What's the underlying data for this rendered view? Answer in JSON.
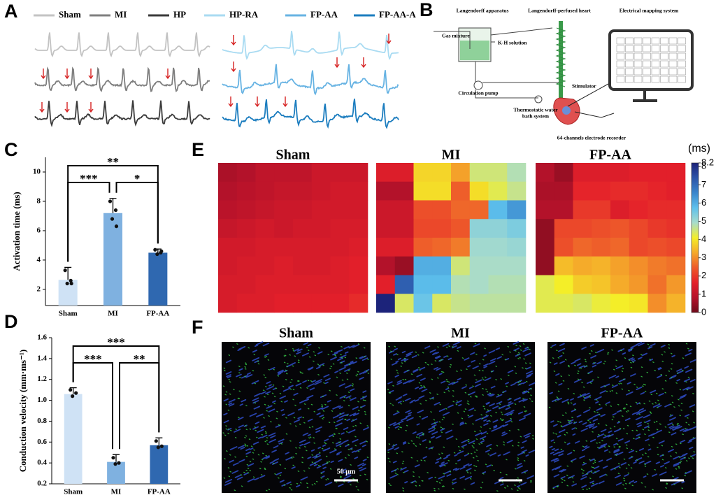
{
  "panel_a": {
    "letter": "A",
    "legend": [
      {
        "name": "Sham",
        "color": "#c3c3c3"
      },
      {
        "name": "MI",
        "color": "#7f7f7f"
      },
      {
        "name": "HP",
        "color": "#3a3a3a"
      },
      {
        "name": "HP-RA",
        "color": "#a9dbf2"
      },
      {
        "name": "FP-AA",
        "color": "#67b3e3"
      },
      {
        "name": "FP-AA-A",
        "color": "#1c7dbf"
      }
    ]
  },
  "panel_b": {
    "letter": "B",
    "labels": {
      "apparatus": "Langendorff apparatus",
      "heart": "Langendorff-perfused heart",
      "mapping": "Electrical mapping system",
      "gas": "Gas mixture",
      "solution": "K-H solution",
      "pump": "Circulation pump",
      "bath": [
        "Thermostatic water",
        "bath system"
      ],
      "stimulator": "Stimulator",
      "recorder": "64-channels electrode recorder"
    }
  },
  "chart_data": [
    {
      "type": "bar",
      "panel_letter": "C",
      "ylabel": "Activation time (ms)",
      "categories": [
        "Sham",
        "MI",
        "FP-AA"
      ],
      "values": [
        2.65,
        7.2,
        4.5
      ],
      "errors": [
        0.85,
        1.0,
        0.25
      ],
      "points": [
        [
          3.3,
          2.6,
          2.4,
          2.4
        ],
        [
          8.0,
          7.4,
          6.8,
          6.3
        ],
        [
          4.7,
          4.5,
          4.4,
          4.6
        ]
      ],
      "colors": [
        "#cfe2f5",
        "#7fb1e0",
        "#2f68b0"
      ],
      "ylim": [
        0.9,
        11
      ],
      "yticks": [
        2,
        4,
        6,
        8,
        10
      ],
      "annotations": [
        {
          "text": "**",
          "between": [
            "Sham",
            "FP-AA"
          ]
        },
        {
          "text": "***",
          "between": [
            "Sham",
            "MI"
          ]
        },
        {
          "text": "*",
          "between": [
            "MI",
            "FP-AA"
          ]
        }
      ]
    },
    {
      "type": "bar",
      "panel_letter": "D",
      "ylabel": "Conduction velocity (mm·ms⁻¹)",
      "categories": [
        "Sham",
        "MI",
        "FP-AA"
      ],
      "values": [
        1.06,
        0.41,
        0.57
      ],
      "errors": [
        0.06,
        0.07,
        0.07
      ],
      "points": [
        [
          1.1,
          1.07,
          1.04
        ],
        [
          0.45,
          0.4,
          0.39
        ],
        [
          0.61,
          0.56,
          0.55
        ]
      ],
      "colors": [
        "#cfe2f5",
        "#7fb1e0",
        "#2f68b0"
      ],
      "ylim": [
        0.2,
        1.6
      ],
      "yticks": [
        0.2,
        0.4,
        0.6,
        0.8,
        {
          "value": 1,
          "label": "1.0"
        },
        1.2,
        1.4,
        1.6
      ],
      "annotations": [
        {
          "text": "***",
          "between": [
            "Sham",
            "FP-AA"
          ]
        },
        {
          "text": "***",
          "between": [
            "Sham",
            "MI"
          ]
        },
        {
          "text": "**",
          "between": [
            "MI",
            "FP-AA"
          ]
        }
      ]
    },
    {
      "type": "heatmap",
      "panel_letter": "E",
      "colorbar_label": "(ms)",
      "zlim": [
        0,
        8.2
      ],
      "zticks": [
        0,
        1,
        2,
        3,
        4,
        5,
        6,
        7,
        8,
        8.2
      ],
      "colors": [
        "#6e0a1a",
        "#b5122a",
        "#e4202a",
        "#ee5a2a",
        "#f5a92a",
        "#f4ee28",
        "#a8dccc",
        "#5ec0ec",
        "#3a86cc",
        "#2c54a8",
        "#1c237a"
      ],
      "maps": [
        {
          "title": "Sham",
          "z": [
            [
              0.7,
              0.8,
              1.0,
              1.0,
              1.0,
              1.2,
              1.2,
              1.2
            ],
            [
              0.8,
              0.9,
              1.0,
              1.1,
              1.1,
              1.2,
              1.3,
              1.3
            ],
            [
              0.9,
              1.0,
              1.1,
              1.2,
              1.2,
              1.3,
              1.3,
              1.3
            ],
            [
              1.1,
              1.2,
              1.3,
              1.2,
              1.3,
              1.3,
              1.4,
              1.4
            ],
            [
              1.3,
              1.3,
              1.4,
              1.4,
              1.4,
              1.4,
              1.4,
              1.5
            ],
            [
              1.3,
              1.4,
              1.4,
              1.5,
              1.4,
              1.4,
              1.5,
              1.6
            ],
            [
              1.4,
              1.4,
              1.5,
              1.5,
              1.5,
              1.5,
              1.5,
              1.6
            ],
            [
              1.4,
              1.5,
              1.5,
              1.6,
              1.6,
              1.6,
              1.6,
              1.8
            ]
          ]
        },
        {
          "title": "MI",
          "z": [
            [
              1.5,
              1.5,
              3.8,
              3.8,
              3.2,
              4.5,
              4.5,
              4.8
            ],
            [
              0.8,
              0.8,
              3.9,
              3.9,
              2.5,
              3.9,
              4.3,
              4.6
            ],
            [
              1.2,
              1.2,
              2.3,
              2.3,
              2.6,
              2.6,
              5.8,
              6.3
            ],
            [
              1.2,
              1.2,
              2.2,
              2.2,
              2.4,
              5.2,
              5.2,
              5.4
            ],
            [
              1.5,
              1.5,
              2.5,
              2.6,
              2.8,
              5.0,
              5.0,
              5.1
            ],
            [
              0.8,
              0.5,
              6.0,
              6.0,
              4.5,
              4.9,
              4.9,
              4.9
            ],
            [
              1.6,
              7.2,
              5.8,
              5.8,
              4.8,
              4.9,
              4.8,
              4.8
            ],
            [
              8.2,
              4.4,
              5.6,
              4.4,
              4.6,
              4.7,
              4.7,
              4.7
            ]
          ]
        },
        {
          "title": "FP-AA",
          "z": [
            [
              0.8,
              0.5,
              1.5,
              1.5,
              1.5,
              1.6,
              1.6,
              1.6
            ],
            [
              0.7,
              0.7,
              1.7,
              1.7,
              1.8,
              1.8,
              1.7,
              1.6
            ],
            [
              0.8,
              0.8,
              2.0,
              2.0,
              1.5,
              1.7,
              1.8,
              1.8
            ],
            [
              0.4,
              2.2,
              2.2,
              2.3,
              2.4,
              2.2,
              2.0,
              1.9
            ],
            [
              0.4,
              2.3,
              2.6,
              2.5,
              2.6,
              2.2,
              2.3,
              2.2
            ],
            [
              0.4,
              3.5,
              3.3,
              3.4,
              3.2,
              3.0,
              2.8,
              2.7
            ],
            [
              4.3,
              4.1,
              3.7,
              3.6,
              3.3,
              3.1,
              2.7,
              3.1
            ],
            [
              4.3,
              4.3,
              4.4,
              4.2,
              4.1,
              4.0,
              3.0,
              3.4
            ]
          ]
        }
      ]
    }
  ],
  "panel_f": {
    "letter": "F",
    "titles": [
      "Sham",
      "MI",
      "FP-AA"
    ],
    "scale_bar": "50 μm"
  }
}
